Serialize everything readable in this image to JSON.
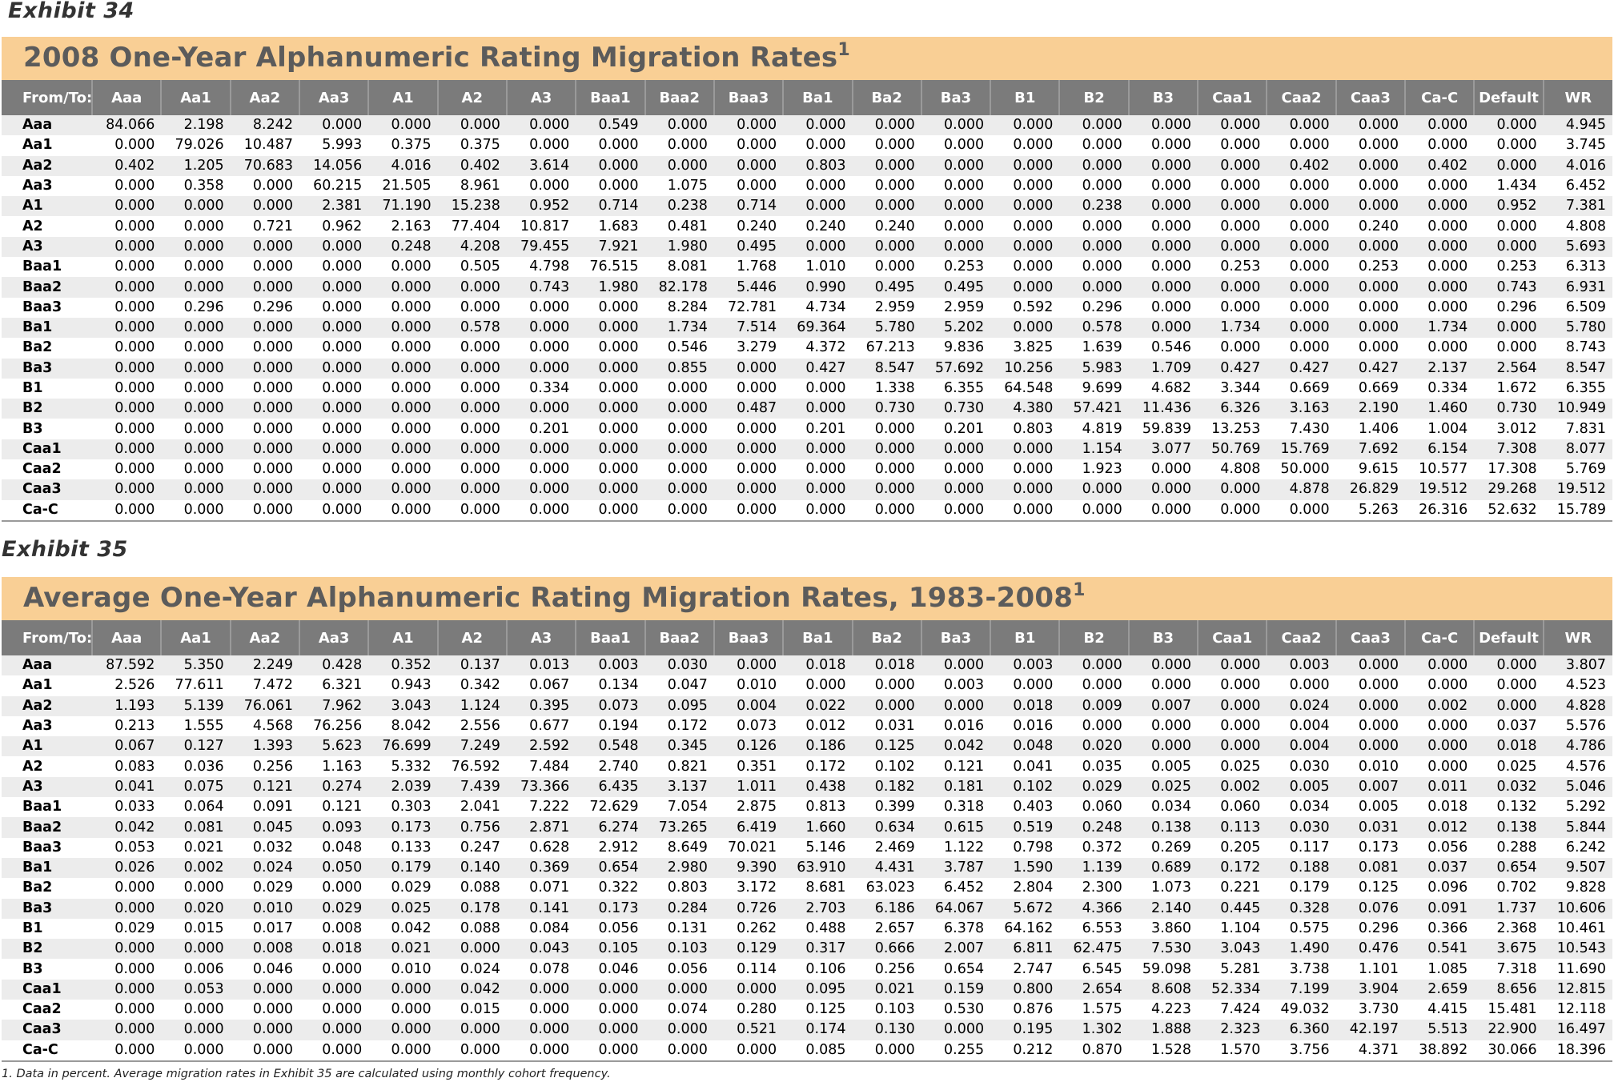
{
  "exhibit34": {
    "label": "Exhibit 34",
    "title": "2008 One-Year Alphanumeric Rating Migration Rates",
    "title_sup": "1",
    "columns": [
      "From/To:",
      "Aaa",
      "Aa1",
      "Aa2",
      "Aa3",
      "A1",
      "A2",
      "A3",
      "Baa1",
      "Baa2",
      "Baa3",
      "Ba1",
      "Ba2",
      "Ba3",
      "B1",
      "B2",
      "B3",
      "Caa1",
      "Caa2",
      "Caa3",
      "Ca-C",
      "Default",
      "WR"
    ],
    "rows": [
      [
        "Aaa",
        "84.066",
        "2.198",
        "8.242",
        "0.000",
        "0.000",
        "0.000",
        "0.000",
        "0.549",
        "0.000",
        "0.000",
        "0.000",
        "0.000",
        "0.000",
        "0.000",
        "0.000",
        "0.000",
        "0.000",
        "0.000",
        "0.000",
        "0.000",
        "0.000",
        "4.945"
      ],
      [
        "Aa1",
        "0.000",
        "79.026",
        "10.487",
        "5.993",
        "0.375",
        "0.375",
        "0.000",
        "0.000",
        "0.000",
        "0.000",
        "0.000",
        "0.000",
        "0.000",
        "0.000",
        "0.000",
        "0.000",
        "0.000",
        "0.000",
        "0.000",
        "0.000",
        "0.000",
        "3.745"
      ],
      [
        "Aa2",
        "0.402",
        "1.205",
        "70.683",
        "14.056",
        "4.016",
        "0.402",
        "3.614",
        "0.000",
        "0.000",
        "0.000",
        "0.803",
        "0.000",
        "0.000",
        "0.000",
        "0.000",
        "0.000",
        "0.000",
        "0.402",
        "0.000",
        "0.402",
        "0.000",
        "4.016"
      ],
      [
        "Aa3",
        "0.000",
        "0.358",
        "0.000",
        "60.215",
        "21.505",
        "8.961",
        "0.000",
        "0.000",
        "1.075",
        "0.000",
        "0.000",
        "0.000",
        "0.000",
        "0.000",
        "0.000",
        "0.000",
        "0.000",
        "0.000",
        "0.000",
        "0.000",
        "1.434",
        "6.452"
      ],
      [
        "A1",
        "0.000",
        "0.000",
        "0.000",
        "2.381",
        "71.190",
        "15.238",
        "0.952",
        "0.714",
        "0.238",
        "0.714",
        "0.000",
        "0.000",
        "0.000",
        "0.000",
        "0.238",
        "0.000",
        "0.000",
        "0.000",
        "0.000",
        "0.000",
        "0.952",
        "7.381"
      ],
      [
        "A2",
        "0.000",
        "0.000",
        "0.721",
        "0.962",
        "2.163",
        "77.404",
        "10.817",
        "1.683",
        "0.481",
        "0.240",
        "0.240",
        "0.240",
        "0.000",
        "0.000",
        "0.000",
        "0.000",
        "0.000",
        "0.000",
        "0.240",
        "0.000",
        "0.000",
        "4.808"
      ],
      [
        "A3",
        "0.000",
        "0.000",
        "0.000",
        "0.000",
        "0.248",
        "4.208",
        "79.455",
        "7.921",
        "1.980",
        "0.495",
        "0.000",
        "0.000",
        "0.000",
        "0.000",
        "0.000",
        "0.000",
        "0.000",
        "0.000",
        "0.000",
        "0.000",
        "0.000",
        "5.693"
      ],
      [
        "Baa1",
        "0.000",
        "0.000",
        "0.000",
        "0.000",
        "0.000",
        "0.505",
        "4.798",
        "76.515",
        "8.081",
        "1.768",
        "1.010",
        "0.000",
        "0.253",
        "0.000",
        "0.000",
        "0.000",
        "0.253",
        "0.000",
        "0.253",
        "0.000",
        "0.253",
        "6.313"
      ],
      [
        "Baa2",
        "0.000",
        "0.000",
        "0.000",
        "0.000",
        "0.000",
        "0.000",
        "0.743",
        "1.980",
        "82.178",
        "5.446",
        "0.990",
        "0.495",
        "0.495",
        "0.000",
        "0.000",
        "0.000",
        "0.000",
        "0.000",
        "0.000",
        "0.000",
        "0.743",
        "6.931"
      ],
      [
        "Baa3",
        "0.000",
        "0.296",
        "0.296",
        "0.000",
        "0.000",
        "0.000",
        "0.000",
        "0.000",
        "8.284",
        "72.781",
        "4.734",
        "2.959",
        "2.959",
        "0.592",
        "0.296",
        "0.000",
        "0.000",
        "0.000",
        "0.000",
        "0.000",
        "0.296",
        "6.509"
      ],
      [
        "Ba1",
        "0.000",
        "0.000",
        "0.000",
        "0.000",
        "0.000",
        "0.578",
        "0.000",
        "0.000",
        "1.734",
        "7.514",
        "69.364",
        "5.780",
        "5.202",
        "0.000",
        "0.578",
        "0.000",
        "1.734",
        "0.000",
        "0.000",
        "1.734",
        "0.000",
        "5.780"
      ],
      [
        "Ba2",
        "0.000",
        "0.000",
        "0.000",
        "0.000",
        "0.000",
        "0.000",
        "0.000",
        "0.000",
        "0.546",
        "3.279",
        "4.372",
        "67.213",
        "9.836",
        "3.825",
        "1.639",
        "0.546",
        "0.000",
        "0.000",
        "0.000",
        "0.000",
        "0.000",
        "8.743"
      ],
      [
        "Ba3",
        "0.000",
        "0.000",
        "0.000",
        "0.000",
        "0.000",
        "0.000",
        "0.000",
        "0.000",
        "0.855",
        "0.000",
        "0.427",
        "8.547",
        "57.692",
        "10.256",
        "5.983",
        "1.709",
        "0.427",
        "0.427",
        "0.427",
        "2.137",
        "2.564",
        "8.547"
      ],
      [
        "B1",
        "0.000",
        "0.000",
        "0.000",
        "0.000",
        "0.000",
        "0.000",
        "0.334",
        "0.000",
        "0.000",
        "0.000",
        "0.000",
        "1.338",
        "6.355",
        "64.548",
        "9.699",
        "4.682",
        "3.344",
        "0.669",
        "0.669",
        "0.334",
        "1.672",
        "6.355"
      ],
      [
        "B2",
        "0.000",
        "0.000",
        "0.000",
        "0.000",
        "0.000",
        "0.000",
        "0.000",
        "0.000",
        "0.000",
        "0.487",
        "0.000",
        "0.730",
        "0.730",
        "4.380",
        "57.421",
        "11.436",
        "6.326",
        "3.163",
        "2.190",
        "1.460",
        "0.730",
        "10.949"
      ],
      [
        "B3",
        "0.000",
        "0.000",
        "0.000",
        "0.000",
        "0.000",
        "0.000",
        "0.201",
        "0.000",
        "0.000",
        "0.000",
        "0.201",
        "0.000",
        "0.201",
        "0.803",
        "4.819",
        "59.839",
        "13.253",
        "7.430",
        "1.406",
        "1.004",
        "3.012",
        "7.831"
      ],
      [
        "Caa1",
        "0.000",
        "0.000",
        "0.000",
        "0.000",
        "0.000",
        "0.000",
        "0.000",
        "0.000",
        "0.000",
        "0.000",
        "0.000",
        "0.000",
        "0.000",
        "0.000",
        "1.154",
        "3.077",
        "50.769",
        "15.769",
        "7.692",
        "6.154",
        "7.308",
        "8.077"
      ],
      [
        "Caa2",
        "0.000",
        "0.000",
        "0.000",
        "0.000",
        "0.000",
        "0.000",
        "0.000",
        "0.000",
        "0.000",
        "0.000",
        "0.000",
        "0.000",
        "0.000",
        "0.000",
        "1.923",
        "0.000",
        "4.808",
        "50.000",
        "9.615",
        "10.577",
        "17.308",
        "5.769"
      ],
      [
        "Caa3",
        "0.000",
        "0.000",
        "0.000",
        "0.000",
        "0.000",
        "0.000",
        "0.000",
        "0.000",
        "0.000",
        "0.000",
        "0.000",
        "0.000",
        "0.000",
        "0.000",
        "0.000",
        "0.000",
        "0.000",
        "4.878",
        "26.829",
        "19.512",
        "29.268",
        "19.512"
      ],
      [
        "Ca-C",
        "0.000",
        "0.000",
        "0.000",
        "0.000",
        "0.000",
        "0.000",
        "0.000",
        "0.000",
        "0.000",
        "0.000",
        "0.000",
        "0.000",
        "0.000",
        "0.000",
        "0.000",
        "0.000",
        "0.000",
        "0.000",
        "5.263",
        "26.316",
        "52.632",
        "15.789"
      ]
    ]
  },
  "exhibit35": {
    "label": "Exhibit 35",
    "title": "Average One-Year Alphanumeric Rating Migration Rates, 1983-2008",
    "title_sup": "1",
    "columns": [
      "From/To:",
      "Aaa",
      "Aa1",
      "Aa2",
      "Aa3",
      "A1",
      "A2",
      "A3",
      "Baa1",
      "Baa2",
      "Baa3",
      "Ba1",
      "Ba2",
      "Ba3",
      "B1",
      "B2",
      "B3",
      "Caa1",
      "Caa2",
      "Caa3",
      "Ca-C",
      "Default",
      "WR"
    ],
    "rows": [
      [
        "Aaa",
        "87.592",
        "5.350",
        "2.249",
        "0.428",
        "0.352",
        "0.137",
        "0.013",
        "0.003",
        "0.030",
        "0.000",
        "0.018",
        "0.018",
        "0.000",
        "0.003",
        "0.000",
        "0.000",
        "0.000",
        "0.003",
        "0.000",
        "0.000",
        "0.000",
        "3.807"
      ],
      [
        "Aa1",
        "2.526",
        "77.611",
        "7.472",
        "6.321",
        "0.943",
        "0.342",
        "0.067",
        "0.134",
        "0.047",
        "0.010",
        "0.000",
        "0.000",
        "0.003",
        "0.000",
        "0.000",
        "0.000",
        "0.000",
        "0.000",
        "0.000",
        "0.000",
        "0.000",
        "4.523"
      ],
      [
        "Aa2",
        "1.193",
        "5.139",
        "76.061",
        "7.962",
        "3.043",
        "1.124",
        "0.395",
        "0.073",
        "0.095",
        "0.004",
        "0.022",
        "0.000",
        "0.000",
        "0.018",
        "0.009",
        "0.007",
        "0.000",
        "0.024",
        "0.000",
        "0.002",
        "0.000",
        "4.828"
      ],
      [
        "Aa3",
        "0.213",
        "1.555",
        "4.568",
        "76.256",
        "8.042",
        "2.556",
        "0.677",
        "0.194",
        "0.172",
        "0.073",
        "0.012",
        "0.031",
        "0.016",
        "0.016",
        "0.000",
        "0.000",
        "0.000",
        "0.004",
        "0.000",
        "0.000",
        "0.037",
        "5.576"
      ],
      [
        "A1",
        "0.067",
        "0.127",
        "1.393",
        "5.623",
        "76.699",
        "7.249",
        "2.592",
        "0.548",
        "0.345",
        "0.126",
        "0.186",
        "0.125",
        "0.042",
        "0.048",
        "0.020",
        "0.000",
        "0.000",
        "0.004",
        "0.000",
        "0.000",
        "0.018",
        "4.786"
      ],
      [
        "A2",
        "0.083",
        "0.036",
        "0.256",
        "1.163",
        "5.332",
        "76.592",
        "7.484",
        "2.740",
        "0.821",
        "0.351",
        "0.172",
        "0.102",
        "0.121",
        "0.041",
        "0.035",
        "0.005",
        "0.025",
        "0.030",
        "0.010",
        "0.000",
        "0.025",
        "4.576"
      ],
      [
        "A3",
        "0.041",
        "0.075",
        "0.121",
        "0.274",
        "2.039",
        "7.439",
        "73.366",
        "6.435",
        "3.137",
        "1.011",
        "0.438",
        "0.182",
        "0.181",
        "0.102",
        "0.029",
        "0.025",
        "0.002",
        "0.005",
        "0.007",
        "0.011",
        "0.032",
        "5.046"
      ],
      [
        "Baa1",
        "0.033",
        "0.064",
        "0.091",
        "0.121",
        "0.303",
        "2.041",
        "7.222",
        "72.629",
        "7.054",
        "2.875",
        "0.813",
        "0.399",
        "0.318",
        "0.403",
        "0.060",
        "0.034",
        "0.060",
        "0.034",
        "0.005",
        "0.018",
        "0.132",
        "5.292"
      ],
      [
        "Baa2",
        "0.042",
        "0.081",
        "0.045",
        "0.093",
        "0.173",
        "0.756",
        "2.871",
        "6.274",
        "73.265",
        "6.419",
        "1.660",
        "0.634",
        "0.615",
        "0.519",
        "0.248",
        "0.138",
        "0.113",
        "0.030",
        "0.031",
        "0.012",
        "0.138",
        "5.844"
      ],
      [
        "Baa3",
        "0.053",
        "0.021",
        "0.032",
        "0.048",
        "0.133",
        "0.247",
        "0.628",
        "2.912",
        "8.649",
        "70.021",
        "5.146",
        "2.469",
        "1.122",
        "0.798",
        "0.372",
        "0.269",
        "0.205",
        "0.117",
        "0.173",
        "0.056",
        "0.288",
        "6.242"
      ],
      [
        "Ba1",
        "0.026",
        "0.002",
        "0.024",
        "0.050",
        "0.179",
        "0.140",
        "0.369",
        "0.654",
        "2.980",
        "9.390",
        "63.910",
        "4.431",
        "3.787",
        "1.590",
        "1.139",
        "0.689",
        "0.172",
        "0.188",
        "0.081",
        "0.037",
        "0.654",
        "9.507"
      ],
      [
        "Ba2",
        "0.000",
        "0.000",
        "0.029",
        "0.000",
        "0.029",
        "0.088",
        "0.071",
        "0.322",
        "0.803",
        "3.172",
        "8.681",
        "63.023",
        "6.452",
        "2.804",
        "2.300",
        "1.073",
        "0.221",
        "0.179",
        "0.125",
        "0.096",
        "0.702",
        "9.828"
      ],
      [
        "Ba3",
        "0.000",
        "0.020",
        "0.010",
        "0.029",
        "0.025",
        "0.178",
        "0.141",
        "0.173",
        "0.284",
        "0.726",
        "2.703",
        "6.186",
        "64.067",
        "5.672",
        "4.366",
        "2.140",
        "0.445",
        "0.328",
        "0.076",
        "0.091",
        "1.737",
        "10.606"
      ],
      [
        "B1",
        "0.029",
        "0.015",
        "0.017",
        "0.008",
        "0.042",
        "0.088",
        "0.084",
        "0.056",
        "0.131",
        "0.262",
        "0.488",
        "2.657",
        "6.378",
        "64.162",
        "6.553",
        "3.860",
        "1.104",
        "0.575",
        "0.296",
        "0.366",
        "2.368",
        "10.461"
      ],
      [
        "B2",
        "0.000",
        "0.000",
        "0.008",
        "0.018",
        "0.021",
        "0.000",
        "0.043",
        "0.105",
        "0.103",
        "0.129",
        "0.317",
        "0.666",
        "2.007",
        "6.811",
        "62.475",
        "7.530",
        "3.043",
        "1.490",
        "0.476",
        "0.541",
        "3.675",
        "10.543"
      ],
      [
        "B3",
        "0.000",
        "0.006",
        "0.046",
        "0.000",
        "0.010",
        "0.024",
        "0.078",
        "0.046",
        "0.056",
        "0.114",
        "0.106",
        "0.256",
        "0.654",
        "2.747",
        "6.545",
        "59.098",
        "5.281",
        "3.738",
        "1.101",
        "1.085",
        "7.318",
        "11.690"
      ],
      [
        "Caa1",
        "0.000",
        "0.053",
        "0.000",
        "0.000",
        "0.000",
        "0.042",
        "0.000",
        "0.000",
        "0.000",
        "0.000",
        "0.095",
        "0.021",
        "0.159",
        "0.800",
        "2.654",
        "8.608",
        "52.334",
        "7.199",
        "3.904",
        "2.659",
        "8.656",
        "12.815"
      ],
      [
        "Caa2",
        "0.000",
        "0.000",
        "0.000",
        "0.000",
        "0.000",
        "0.015",
        "0.000",
        "0.000",
        "0.074",
        "0.280",
        "0.125",
        "0.103",
        "0.530",
        "0.876",
        "1.575",
        "4.223",
        "7.424",
        "49.032",
        "3.730",
        "4.415",
        "15.481",
        "12.118"
      ],
      [
        "Caa3",
        "0.000",
        "0.000",
        "0.000",
        "0.000",
        "0.000",
        "0.000",
        "0.000",
        "0.000",
        "0.000",
        "0.521",
        "0.174",
        "0.130",
        "0.000",
        "0.195",
        "1.302",
        "1.888",
        "2.323",
        "6.360",
        "42.197",
        "5.513",
        "22.900",
        "16.497"
      ],
      [
        "Ca-C",
        "0.000",
        "0.000",
        "0.000",
        "0.000",
        "0.000",
        "0.000",
        "0.000",
        "0.000",
        "0.000",
        "0.000",
        "0.085",
        "0.000",
        "0.255",
        "0.212",
        "0.870",
        "1.528",
        "1.570",
        "3.756",
        "4.371",
        "38.892",
        "30.066",
        "18.396"
      ]
    ]
  },
  "footnote": "1. Data in percent. Average migration rates in Exhibit 35 are calculated using monthly cohort frequency."
}
